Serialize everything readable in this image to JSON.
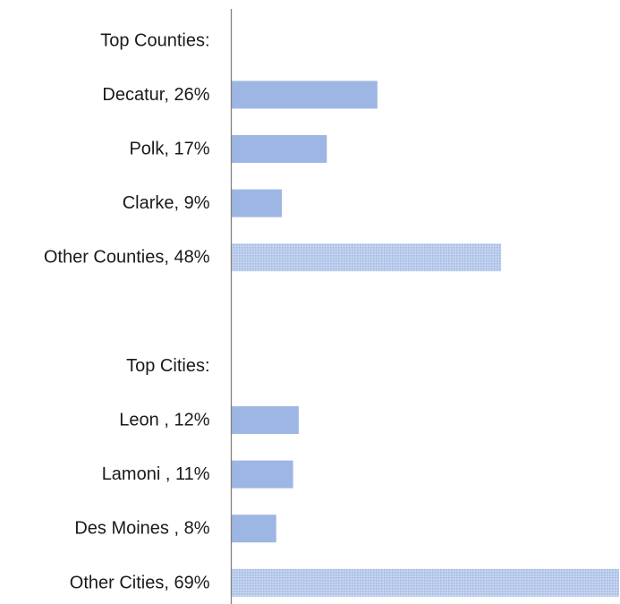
{
  "chart_data": {
    "type": "bar",
    "orientation": "horizontal",
    "categories": [
      "Top Counties:",
      "Decatur, 26%",
      "Polk, 17%",
      "Clarke, 9%",
      "Other Counties, 48%",
      "",
      "Top Cities:",
      "Leon , 12%",
      "Lamoni , 11%",
      "Des Moines , 8%",
      "Other Cities, 69%"
    ],
    "values": [
      null,
      26,
      17,
      9,
      48,
      null,
      null,
      12,
      11,
      8,
      69
    ],
    "bar_style": [
      "none",
      "solid",
      "solid",
      "solid",
      "hatched",
      "none",
      "none",
      "solid",
      "solid",
      "solid",
      "hatched"
    ],
    "xlim": [
      0,
      69
    ],
    "title": "",
    "xlabel": "",
    "ylabel": "",
    "grid": false,
    "legend": "none",
    "colors": {
      "bar": "#9eb6e3",
      "hatched_bar": "#c3d3ef",
      "hatched_dot": "#9cb4e0",
      "axis": "#808080",
      "text": "#1a1a1a"
    }
  }
}
